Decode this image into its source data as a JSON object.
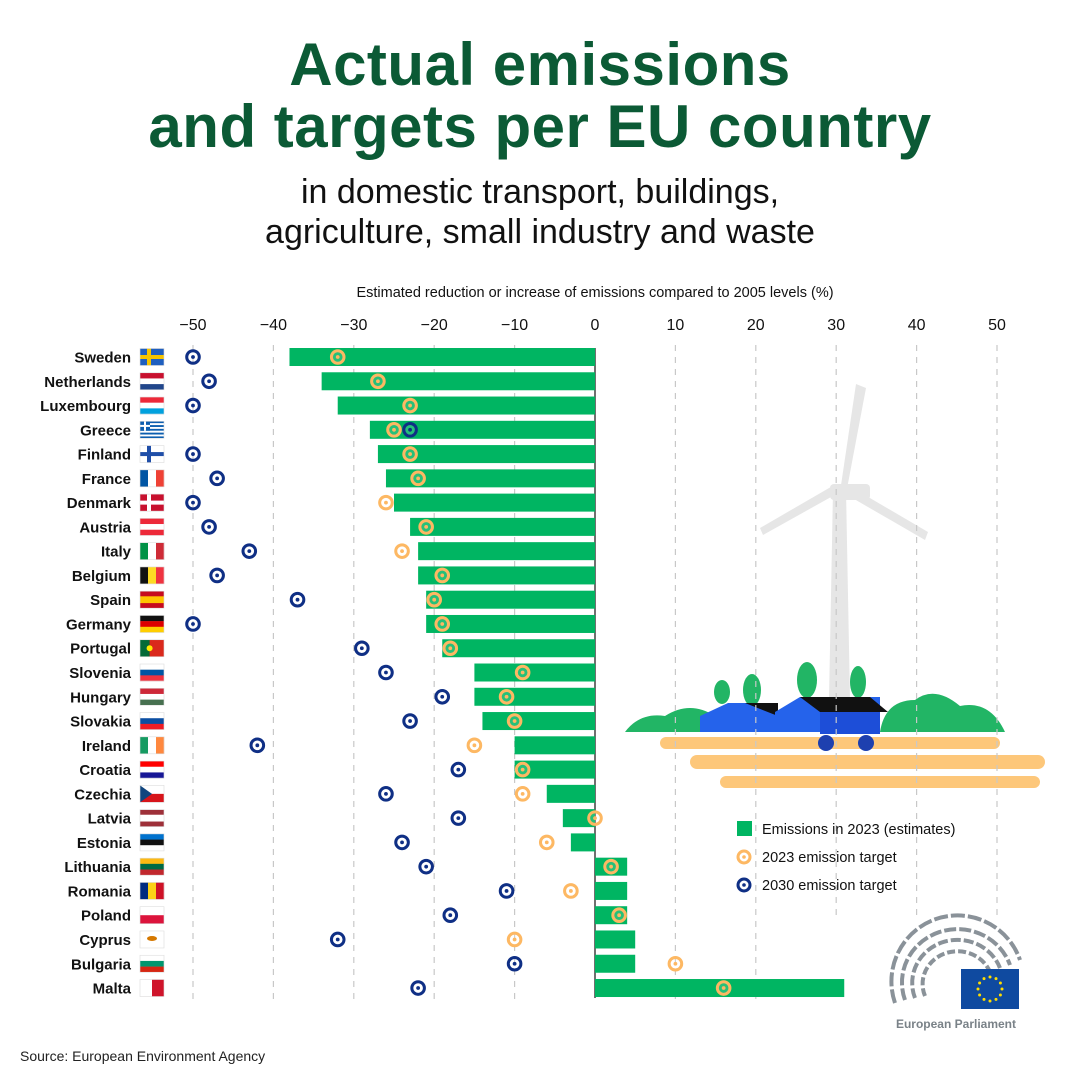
{
  "header": {
    "title_line1": "Actual emissions",
    "title_line2": "and targets per EU country",
    "subtitle_line1": "in domestic transport, buildings,",
    "subtitle_line2": "agriculture, small industry and waste"
  },
  "colors": {
    "bar": "#00b562",
    "target2023": "#fdb863",
    "target2030": "#0f2f85",
    "title": "#0b5a35"
  },
  "chart_data": {
    "type": "bar",
    "orientation": "horizontal",
    "xlabel": "Estimated reduction or increase of emissions compared to 2005 levels (%)",
    "xlim": [
      -50,
      50
    ],
    "xticks": [
      -50,
      -40,
      -30,
      -20,
      -10,
      0,
      10,
      20,
      30,
      40,
      50
    ],
    "xtick_labels": [
      "−50",
      "−40",
      "−30",
      "−20",
      "−10",
      "0",
      "10",
      "20",
      "30",
      "40",
      "50"
    ],
    "grid": true,
    "legend_placement": "right",
    "categories": [
      "Sweden",
      "Netherlands",
      "Luxembourg",
      "Greece",
      "Finland",
      "France",
      "Denmark",
      "Austria",
      "Italy",
      "Belgium",
      "Spain",
      "Germany",
      "Portugal",
      "Slovenia",
      "Hungary",
      "Slovakia",
      "Ireland",
      "Croatia",
      "Czechia",
      "Latvia",
      "Estonia",
      "Lithuania",
      "Romania",
      "Poland",
      "Cyprus",
      "Bulgaria",
      "Malta"
    ],
    "series": [
      {
        "name": "Emissions in 2023 (estimates)",
        "kind": "bar",
        "values": [
          -38,
          -34,
          -32,
          -28,
          -27,
          -26,
          -25,
          -23,
          -22,
          -22,
          -21,
          -21,
          -19,
          -15,
          -15,
          -14,
          -10,
          -10,
          -6,
          -4,
          -3,
          4,
          4,
          4,
          5,
          5,
          31
        ]
      },
      {
        "name": "2023 emission target",
        "kind": "marker",
        "values": [
          -32,
          -27,
          -23,
          -25,
          -23,
          -22,
          -26,
          -21,
          -24,
          -19,
          -20,
          -19,
          -18,
          -9,
          -11,
          -10,
          -15,
          -9,
          -9,
          0,
          -6,
          2,
          -3,
          3,
          -10,
          10,
          16
        ]
      },
      {
        "name": "2030 emission target",
        "kind": "marker",
        "values": [
          -50,
          -48,
          -50,
          -23,
          -50,
          -47,
          -50,
          -48,
          -43,
          -47,
          -37,
          -50,
          -29,
          -26,
          -19,
          -23,
          -42,
          -17,
          -26,
          -17,
          -24,
          -21,
          -11,
          -18,
          -32,
          -10,
          -22
        ]
      }
    ]
  },
  "logo": {
    "text": "European Parliament"
  },
  "footer": {
    "source": "Source: European Environment Agency"
  }
}
